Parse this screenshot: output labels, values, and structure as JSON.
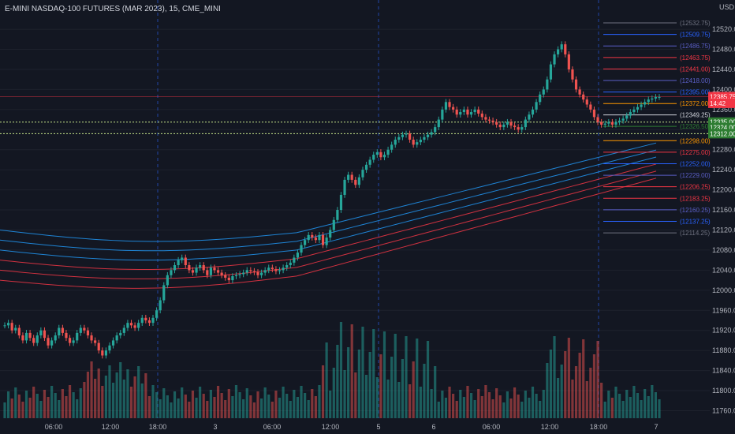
{
  "header": {
    "symbol_title": "E-MINI NASDAQ-100 FUTURES (MAR 2023), 15, CME_MINI",
    "currency": "USD"
  },
  "chart_data": {
    "type": "candlestick",
    "title": "E-MINI NASDAQ-100 FUTURES (MAR 2023), 15, CME_MINI",
    "ylabel": "USD",
    "ylim": [
      11745,
      12550
    ],
    "y_ticks": [
      12520,
      12480,
      12440,
      12400,
      12360,
      12320,
      12280,
      12240,
      12200,
      12160,
      12120,
      12080,
      12040,
      12000,
      11960,
      11920,
      11880,
      11840,
      11800,
      11760
    ],
    "x_ticks": [
      "06:00",
      "12:00",
      "18:00",
      "3",
      "06:00",
      "12:00",
      "5",
      "6",
      "06:00",
      "12:00",
      "18:00",
      "7"
    ],
    "levels": [
      {
        "label": "(12532.75)",
        "value": 12532.75,
        "color": "#6f7280"
      },
      {
        "label": "(12509.75)",
        "value": 12509.75,
        "color": "#2962ff"
      },
      {
        "label": "(12486.75)",
        "value": 12486.75,
        "color": "#5b5fc7"
      },
      {
        "label": "(12463.75)",
        "value": 12463.75,
        "color": "#f23645"
      },
      {
        "label": "(12441.00)",
        "value": 12441.0,
        "color": "#f23645"
      },
      {
        "label": "(12418.00)",
        "value": 12418.0,
        "color": "#5b5fc7"
      },
      {
        "label": "(12395.00)",
        "value": 12395.0,
        "color": "#2962ff"
      },
      {
        "label": "(12372.00)",
        "value": 12372.0,
        "color": "#ff9800"
      },
      {
        "label": "(12349.25)",
        "value": 12349.25,
        "color": "#d1d4dc"
      },
      {
        "label": "(12326.50)",
        "value": 12326.5,
        "color": "#2e7d32"
      },
      {
        "label": "(12298.00)",
        "value": 12298.0,
        "color": "#ff9800"
      },
      {
        "label": "(12275.00)",
        "value": 12275.0,
        "color": "#f23645"
      },
      {
        "label": "(12252.00)",
        "value": 12252.0,
        "color": "#2962ff"
      },
      {
        "label": "(12229.00)",
        "value": 12229.0,
        "color": "#5b5fc7"
      },
      {
        "label": "(12206.25)",
        "value": 12206.25,
        "color": "#f23645"
      },
      {
        "label": "(12183.25)",
        "value": 12183.25,
        "color": "#f23645"
      },
      {
        "label": "(12160.25)",
        "value": 12160.25,
        "color": "#5b5fc7"
      },
      {
        "label": "(12137.25)",
        "value": 12137.25,
        "color": "#2962ff"
      },
      {
        "label": "(12114.25)",
        "value": 12114.25,
        "color": "#6f7280"
      }
    ],
    "price_tags": [
      {
        "label": "12385.75",
        "value": 12385.75,
        "color": "#f23645"
      },
      {
        "label": "14:42",
        "value": 12372.5,
        "color": "#f23645"
      },
      {
        "label": "12335.00",
        "value": 12335.0,
        "color": "#2e7d32"
      },
      {
        "label": "12324.00",
        "value": 12324.0,
        "color": "#2e7d32"
      },
      {
        "label": "12312.00",
        "value": 12312.0,
        "color": "#2e7d32"
      }
    ],
    "close_series": [
      11930,
      11935,
      11920,
      11925,
      11910,
      11900,
      11915,
      11905,
      11895,
      11910,
      11920,
      11905,
      11890,
      11900,
      11910,
      11925,
      11915,
      11905,
      11895,
      11900,
      11915,
      11925,
      11920,
      11910,
      11900,
      11895,
      11880,
      11870,
      11880,
      11890,
      11900,
      11910,
      11915,
      11925,
      11935,
      11930,
      11925,
      11935,
      11945,
      11940,
      11935,
      11945,
      11960,
      11980,
      12010,
      12030,
      12040,
      12050,
      12060,
      12065,
      12050,
      12040,
      12035,
      12045,
      12050,
      12040,
      12030,
      12045,
      12040,
      12035,
      12030,
      12025,
      12020,
      12028,
      12030,
      12032,
      12035,
      12040,
      12038,
      12036,
      12030,
      12035,
      12040,
      12045,
      12042,
      12038,
      12040,
      12045,
      12050,
      12055,
      12065,
      12075,
      12090,
      12100,
      12110,
      12105,
      12100,
      12110,
      12090,
      12105,
      12120,
      12140,
      12160,
      12190,
      12220,
      12230,
      12220,
      12210,
      12225,
      12240,
      12250,
      12260,
      12270,
      12275,
      12265,
      12270,
      12280,
      12290,
      12300,
      12305,
      12310,
      12312,
      12300,
      12290,
      12295,
      12300,
      12305,
      12310,
      12315,
      12325,
      12340,
      12360,
      12375,
      12365,
      12360,
      12350,
      12355,
      12360,
      12350,
      12355,
      12360,
      12352,
      12345,
      12340,
      12338,
      12335,
      12330,
      12325,
      12330,
      12335,
      12328,
      12325,
      12320,
      12325,
      12340,
      12350,
      12360,
      12375,
      12390,
      12400,
      12420,
      12450,
      12470,
      12480,
      12490,
      12470,
      12440,
      12420,
      12400,
      12390,
      12380,
      12370,
      12360,
      12345,
      12335,
      12330,
      12332,
      12335,
      12330,
      12335,
      12338,
      12342,
      12348,
      12355,
      12360,
      12365,
      12370,
      12375,
      12380,
      12382,
      12385,
      12385
    ]
  }
}
